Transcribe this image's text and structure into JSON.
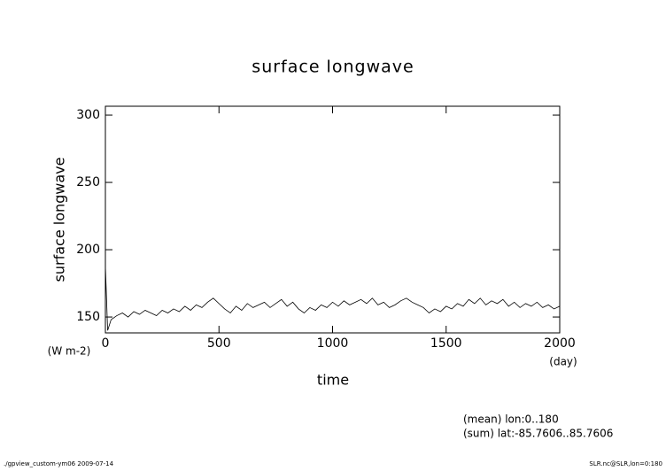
{
  "chart_data": {
    "type": "line",
    "title": "surface longwave",
    "x_label": "time",
    "y_label": "surface longwave",
    "x_unit": "(day)",
    "y_unit": "(W m-2)",
    "annotations": [
      "(mean) lon:0..180",
      "(sum) lat:-85.7606..85.7606"
    ],
    "footer_left": "./gpview_custom-ym06  2009-07-14",
    "footer_right": "SLR.nc@SLR,lon=0:180",
    "xlim": [
      0,
      2000
    ],
    "xticks": [
      0,
      500,
      1000,
      1500,
      2000
    ],
    "ylim": [
      138.2,
      306.6
    ],
    "yticks": [
      150,
      200,
      250,
      300
    ],
    "x": [
      0,
      10,
      25,
      50,
      75,
      100,
      125,
      150,
      175,
      200,
      225,
      250,
      275,
      300,
      325,
      350,
      375,
      400,
      425,
      450,
      475,
      500,
      525,
      550,
      575,
      600,
      625,
      650,
      675,
      700,
      725,
      750,
      775,
      800,
      825,
      850,
      875,
      900,
      925,
      950,
      975,
      1000,
      1025,
      1050,
      1075,
      1100,
      1125,
      1150,
      1175,
      1200,
      1225,
      1250,
      1275,
      1300,
      1325,
      1350,
      1375,
      1400,
      1425,
      1450,
      1475,
      1500,
      1525,
      1550,
      1575,
      1600,
      1625,
      1650,
      1675,
      1700,
      1725,
      1750,
      1775,
      1800,
      1825,
      1850,
      1875,
      1900,
      1925,
      1950,
      1975,
      2000
    ],
    "series": [
      {
        "color": "#000000",
        "values": [
          188,
          140,
          148,
          151,
          153,
          150,
          154,
          152,
          155,
          153,
          151,
          155,
          153,
          156,
          154,
          158,
          155,
          159,
          157,
          161,
          164,
          160,
          156,
          153,
          158,
          155,
          160,
          157,
          159,
          161,
          157,
          160,
          163,
          158,
          161,
          156,
          153,
          157,
          155,
          159,
          157,
          161,
          158,
          162,
          159,
          161,
          163,
          160,
          164,
          159,
          161,
          157,
          159,
          162,
          164,
          161,
          159,
          157,
          153,
          156,
          154,
          158,
          156,
          160,
          158,
          163,
          160,
          164,
          159,
          162,
          160,
          163,
          158,
          161,
          157,
          160,
          158,
          161,
          157,
          159,
          156,
          158
        ]
      }
    ]
  }
}
